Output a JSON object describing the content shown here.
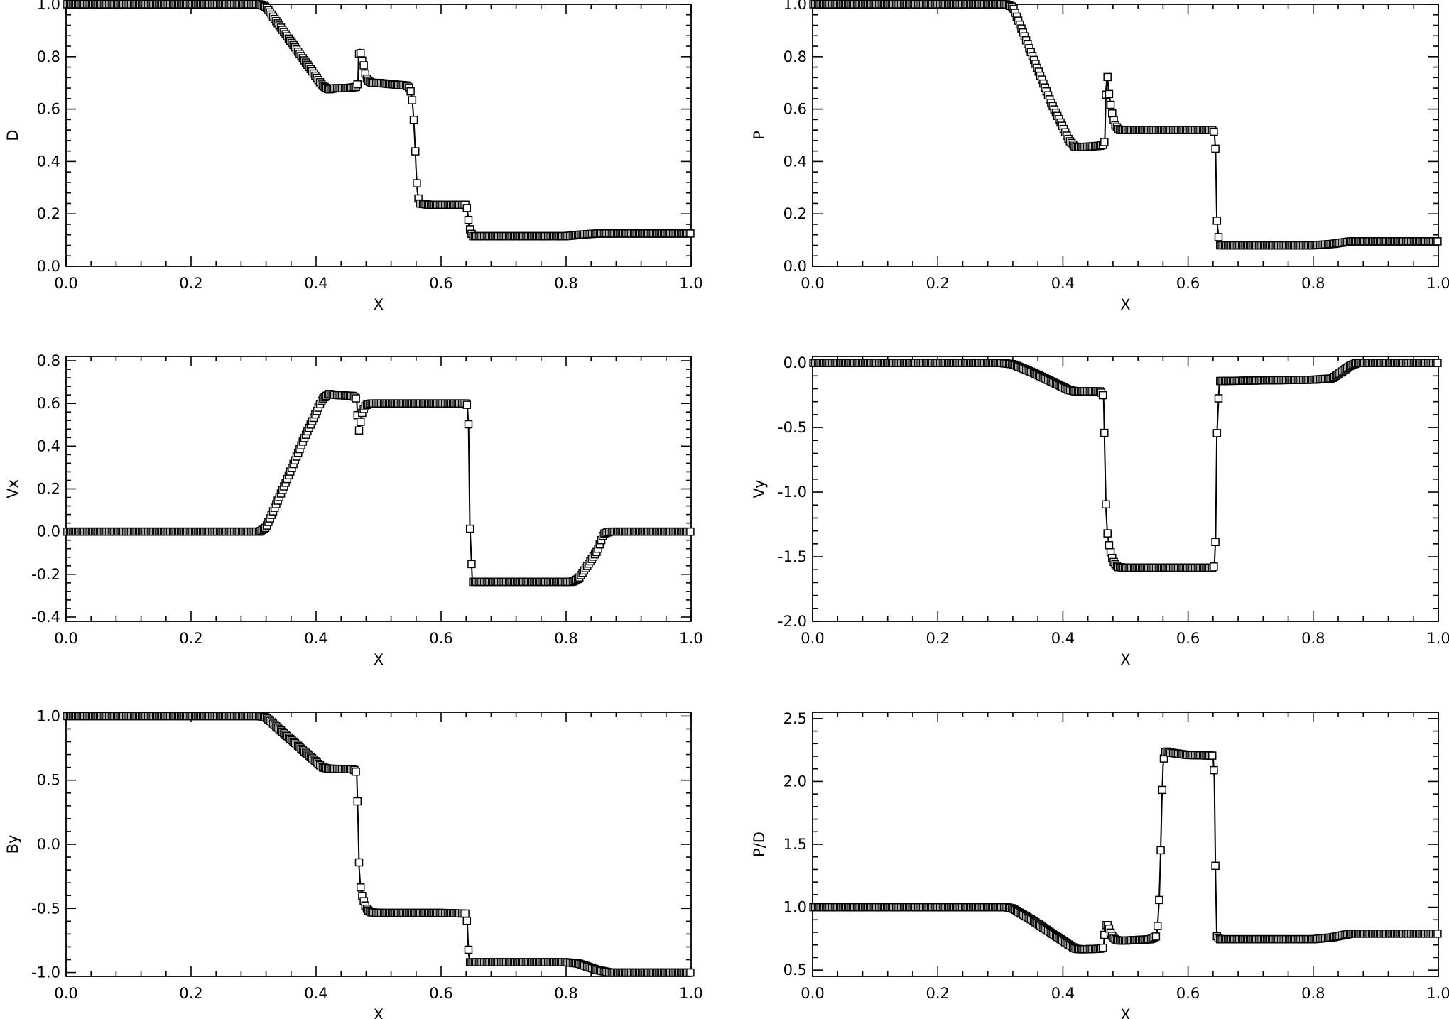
{
  "chart_data": [
    {
      "type": "scatter",
      "xlabel": "X",
      "ylabel": "D",
      "xlim": [
        0,
        1
      ],
      "ylim": [
        0,
        1
      ],
      "xticks": [
        "0.0",
        "0.2",
        "0.4",
        "0.6",
        "0.8",
        "1.0"
      ],
      "yticks": [
        "0.0",
        "0.2",
        "0.4",
        "0.6",
        "0.8",
        "1.0"
      ],
      "xtick_values": [
        0,
        0.2,
        0.4,
        0.6,
        0.8,
        1.0
      ],
      "ytick_values": [
        0,
        0.2,
        0.4,
        0.6,
        0.8,
        1.0
      ],
      "x": [
        0.0,
        0.3,
        0.31,
        0.32,
        0.35,
        0.38,
        0.41,
        0.42,
        0.43,
        0.45,
        0.465,
        0.467,
        0.468,
        0.47,
        0.473,
        0.476,
        0.48,
        0.485,
        0.49,
        0.5,
        0.52,
        0.545,
        0.55,
        0.552,
        0.554,
        0.556,
        0.558,
        0.56,
        0.562,
        0.565,
        0.58,
        0.6,
        0.64,
        0.642,
        0.645,
        0.65,
        0.7,
        0.8,
        0.82,
        0.85,
        1.0
      ],
      "y": [
        1.0,
        1.0,
        1.0,
        0.99,
        0.89,
        0.79,
        0.69,
        0.675,
        0.68,
        0.68,
        0.685,
        0.7,
        0.8,
        0.83,
        0.79,
        0.77,
        0.72,
        0.705,
        0.7,
        0.7,
        0.695,
        0.69,
        0.68,
        0.66,
        0.63,
        0.57,
        0.48,
        0.37,
        0.285,
        0.24,
        0.235,
        0.235,
        0.235,
        0.215,
        0.15,
        0.115,
        0.115,
        0.115,
        0.12,
        0.125,
        0.125
      ]
    },
    {
      "type": "scatter",
      "xlabel": "X",
      "ylabel": "P",
      "xlim": [
        0,
        1
      ],
      "ylim": [
        0,
        1
      ],
      "xticks": [
        "0.0",
        "0.2",
        "0.4",
        "0.6",
        "0.8",
        "1.0"
      ],
      "yticks": [
        "0.0",
        "0.2",
        "0.4",
        "0.6",
        "0.8",
        "1.0"
      ],
      "xtick_values": [
        0,
        0.2,
        0.4,
        0.6,
        0.8,
        1.0
      ],
      "ytick_values": [
        0,
        0.2,
        0.4,
        0.6,
        0.8,
        1.0
      ],
      "x": [
        0.0,
        0.3,
        0.31,
        0.32,
        0.35,
        0.38,
        0.41,
        0.42,
        0.43,
        0.46,
        0.465,
        0.467,
        0.469,
        0.471,
        0.473,
        0.476,
        0.479,
        0.483,
        0.49,
        0.6,
        0.64,
        0.642,
        0.644,
        0.646,
        0.65,
        0.8,
        0.83,
        0.86,
        1.0
      ],
      "y": [
        1.0,
        1.0,
        1.0,
        0.99,
        0.81,
        0.63,
        0.48,
        0.455,
        0.455,
        0.46,
        0.465,
        0.48,
        0.68,
        0.73,
        0.67,
        0.62,
        0.58,
        0.54,
        0.52,
        0.52,
        0.52,
        0.51,
        0.44,
        0.18,
        0.08,
        0.08,
        0.085,
        0.095,
        0.095
      ]
    },
    {
      "type": "scatter",
      "xlabel": "X",
      "ylabel": "Vx",
      "xlim": [
        0,
        1
      ],
      "ylim": [
        -0.42,
        0.82
      ],
      "xticks": [
        "0.0",
        "0.2",
        "0.4",
        "0.6",
        "0.8",
        "1.0"
      ],
      "yticks": [
        "-0.4",
        "-0.2",
        "0.0",
        "0.2",
        "0.4",
        "0.6",
        "0.8"
      ],
      "xtick_values": [
        0,
        0.2,
        0.4,
        0.6,
        0.8,
        1.0
      ],
      "ytick_values": [
        -0.4,
        -0.2,
        0.0,
        0.2,
        0.4,
        0.6,
        0.8
      ],
      "x": [
        0.0,
        0.3,
        0.31,
        0.32,
        0.35,
        0.38,
        0.41,
        0.42,
        0.43,
        0.46,
        0.465,
        0.467,
        0.469,
        0.471,
        0.474,
        0.478,
        0.482,
        0.488,
        0.5,
        0.6,
        0.64,
        0.642,
        0.644,
        0.646,
        0.65,
        0.8,
        0.81,
        0.82,
        0.85,
        0.86,
        0.87,
        1.0
      ],
      "y": [
        0.0,
        0.0,
        0.0,
        0.02,
        0.22,
        0.43,
        0.62,
        0.645,
        0.64,
        0.635,
        0.62,
        0.5,
        0.47,
        0.51,
        0.56,
        0.585,
        0.595,
        0.6,
        0.6,
        0.6,
        0.6,
        0.59,
        0.49,
        0.03,
        -0.235,
        -0.235,
        -0.235,
        -0.22,
        -0.09,
        -0.01,
        0.0,
        0.0
      ]
    },
    {
      "type": "scatter",
      "xlabel": "X",
      "ylabel": "Vy",
      "xlim": [
        0,
        1
      ],
      "ylim": [
        -2.0,
        0.05
      ],
      "xticks": [
        "0.0",
        "0.2",
        "0.4",
        "0.6",
        "0.8",
        "1.0"
      ],
      "yticks": [
        "-2.0",
        "-1.5",
        "-1.0",
        "-0.5",
        "0.0"
      ],
      "xtick_values": [
        0,
        0.2,
        0.4,
        0.6,
        0.8,
        1.0
      ],
      "ytick_values": [
        -2.0,
        -1.5,
        -1.0,
        -0.5,
        0.0
      ],
      "x": [
        0.0,
        0.3,
        0.32,
        0.35,
        0.38,
        0.41,
        0.42,
        0.46,
        0.465,
        0.467,
        0.469,
        0.471,
        0.474,
        0.478,
        0.482,
        0.488,
        0.5,
        0.6,
        0.64,
        0.642,
        0.644,
        0.646,
        0.65,
        0.8,
        0.83,
        0.86,
        0.87,
        1.0
      ],
      "y": [
        0.0,
        0.0,
        -0.01,
        -0.07,
        -0.14,
        -0.21,
        -0.22,
        -0.22,
        -0.26,
        -0.71,
        -1.15,
        -1.31,
        -1.42,
        -1.5,
        -1.55,
        -1.58,
        -1.585,
        -1.585,
        -1.585,
        -1.57,
        -1.36,
        -0.57,
        -0.14,
        -0.13,
        -0.12,
        -0.02,
        0.0,
        0.0
      ]
    },
    {
      "type": "scatter",
      "xlabel": "X",
      "ylabel": "By",
      "xlim": [
        0,
        1
      ],
      "ylim": [
        -1.03,
        1.03
      ],
      "xticks": [
        "0.0",
        "0.2",
        "0.4",
        "0.6",
        "0.8",
        "1.0"
      ],
      "yticks": [
        "-1.0",
        "-0.5",
        "0.0",
        "0.5",
        "1.0"
      ],
      "xtick_values": [
        0,
        0.2,
        0.4,
        0.6,
        0.8,
        1.0
      ],
      "ytick_values": [
        -1.0,
        -0.5,
        0.0,
        0.5,
        1.0
      ],
      "x": [
        0.0,
        0.3,
        0.31,
        0.32,
        0.35,
        0.38,
        0.41,
        0.42,
        0.46,
        0.465,
        0.467,
        0.469,
        0.471,
        0.474,
        0.478,
        0.482,
        0.488,
        0.5,
        0.6,
        0.64,
        0.642,
        0.644,
        0.646,
        0.65,
        0.8,
        0.82,
        0.85,
        0.87,
        1.0
      ],
      "y": [
        1.0,
        1.0,
        1.0,
        0.99,
        0.86,
        0.73,
        0.6,
        0.59,
        0.585,
        0.56,
        0.2,
        -0.19,
        -0.33,
        -0.41,
        -0.47,
        -0.51,
        -0.53,
        -0.535,
        -0.535,
        -0.54,
        -0.63,
        -0.85,
        -0.92,
        -0.92,
        -0.92,
        -0.93,
        -0.98,
        -1.0,
        -1.0
      ]
    },
    {
      "type": "scatter",
      "xlabel": "X",
      "ylabel": "P/D",
      "xlim": [
        0,
        1
      ],
      "ylim": [
        0.45,
        2.55
      ],
      "xticks": [
        "0.0",
        "0.2",
        "0.4",
        "0.6",
        "0.8",
        "1.0"
      ],
      "yticks": [
        "0.5",
        "1.0",
        "1.5",
        "2.0",
        "2.5"
      ],
      "xtick_values": [
        0,
        0.2,
        0.4,
        0.6,
        0.8,
        1.0
      ],
      "ytick_values": [
        0.5,
        1.0,
        1.5,
        2.0,
        2.5
      ],
      "x": [
        0.0,
        0.3,
        0.31,
        0.32,
        0.35,
        0.38,
        0.41,
        0.42,
        0.43,
        0.46,
        0.465,
        0.467,
        0.47,
        0.473,
        0.476,
        0.48,
        0.485,
        0.49,
        0.5,
        0.54,
        0.55,
        0.552,
        0.554,
        0.556,
        0.558,
        0.56,
        0.562,
        0.565,
        0.57,
        0.6,
        0.64,
        0.642,
        0.644,
        0.646,
        0.65,
        0.8,
        0.83,
        0.86,
        1.0
      ],
      "y": [
        1.0,
        1.0,
        1.0,
        0.99,
        0.9,
        0.8,
        0.7,
        0.67,
        0.665,
        0.67,
        0.68,
        0.84,
        0.87,
        0.84,
        0.8,
        0.76,
        0.74,
        0.735,
        0.735,
        0.745,
        0.77,
        0.9,
        1.08,
        1.4,
        1.82,
        2.12,
        2.22,
        2.24,
        2.23,
        2.21,
        2.205,
        2.02,
        1.23,
        0.77,
        0.745,
        0.745,
        0.76,
        0.79,
        0.79
      ]
    }
  ]
}
